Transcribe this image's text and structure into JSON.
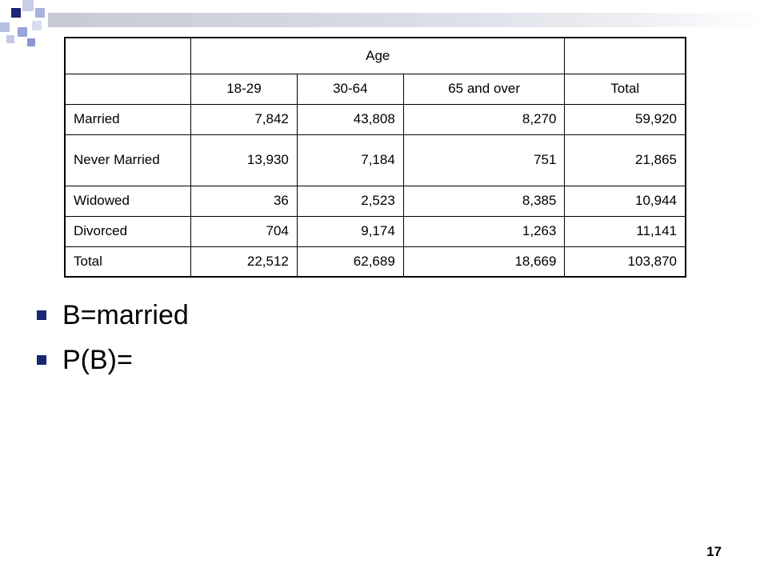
{
  "table": {
    "header_group": "Age",
    "columns": [
      "18-29",
      "30-64",
      "65 and over",
      "Total"
    ],
    "rows": [
      {
        "label": "Married",
        "values": [
          "7,842",
          "43,808",
          "8,270",
          "59,920"
        ]
      },
      {
        "label": "Never Married",
        "values": [
          "13,930",
          "7,184",
          "751",
          "21,865"
        ]
      },
      {
        "label": "Widowed",
        "values": [
          "36",
          "2,523",
          "8,385",
          "10,944"
        ]
      },
      {
        "label": "Divorced",
        "values": [
          "704",
          "9,174",
          "1,263",
          "11,141"
        ]
      },
      {
        "label": "Total",
        "values": [
          "22,512",
          "62,689",
          "18,669",
          "103,870"
        ]
      }
    ]
  },
  "bullets": [
    "B=married",
    "P(B)="
  ],
  "page_number": "17",
  "colors": {
    "accent": "#1a2673"
  }
}
